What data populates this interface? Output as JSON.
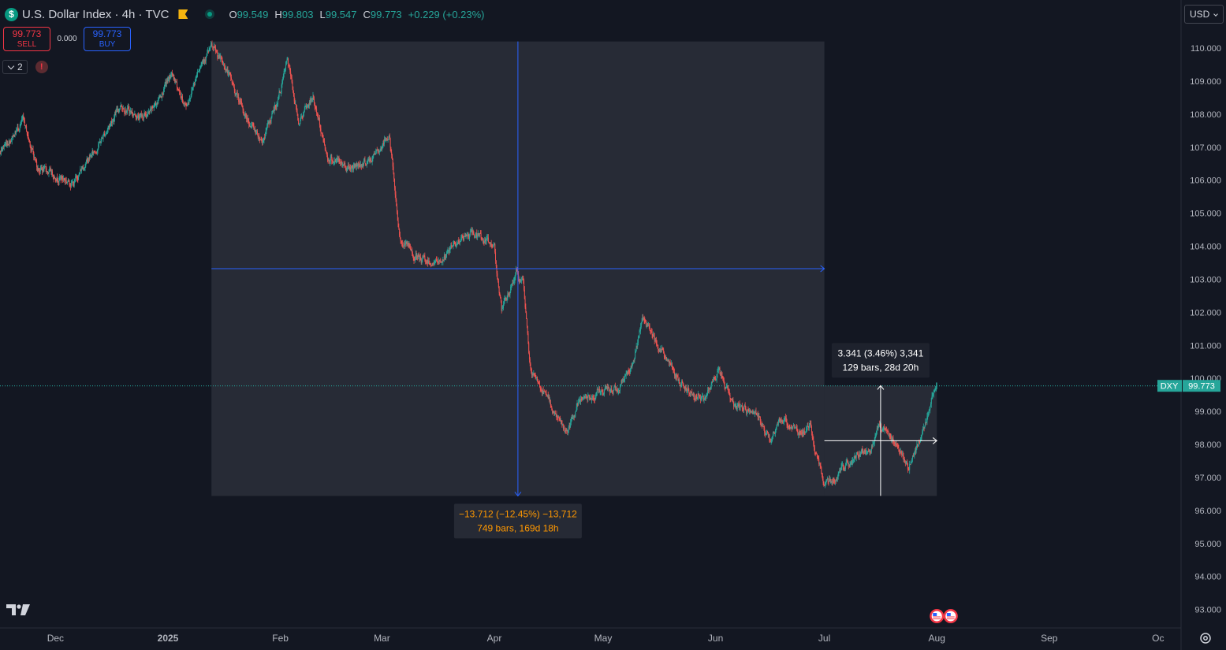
{
  "header": {
    "symbol_icon": "$",
    "title": "U.S. Dollar Index · 4h · TVC",
    "ohlc": {
      "o_label": "O",
      "o": "99.549",
      "h_label": "H",
      "h": "99.803",
      "l_label": "L",
      "l": "99.547",
      "c_label": "C",
      "c": "99.773",
      "change": "+0.229 (+0.23%)"
    }
  },
  "trade": {
    "sell_price": "99.773",
    "sell_label": "SELL",
    "spread": "0.000",
    "buy_price": "99.773",
    "buy_label": "BUY"
  },
  "indicators": {
    "count": "2",
    "alert_icon": "!"
  },
  "currency": "USD",
  "price_label": {
    "symbol": "DXY",
    "value": "99.773"
  },
  "colors": {
    "background": "#131722",
    "up": "#26a69a",
    "down": "#ef5350",
    "measure_blue": "#2962ff",
    "orange": "#ff9800",
    "price_tag": "#26a69a"
  },
  "chart_data": {
    "type": "candlestick",
    "title": "U.S. Dollar Index · 4h · TVC",
    "ylim": [
      92.6,
      111.2
    ],
    "y_ticks": [
      "110.000",
      "109.000",
      "108.000",
      "107.000",
      "106.000",
      "105.000",
      "104.000",
      "103.000",
      "102.000",
      "101.000",
      "100.000",
      "99.000",
      "98.000",
      "97.000",
      "96.000",
      "95.000",
      "94.000",
      "93.000"
    ],
    "y_tick_values": [
      110,
      109,
      108,
      107,
      106,
      105,
      104,
      103,
      102,
      101,
      100,
      99,
      98,
      97,
      96,
      95,
      94,
      93
    ],
    "x_ticks": [
      {
        "label": "Dec",
        "date": "2024-12-01"
      },
      {
        "label": "2025",
        "date": "2025-01-01"
      },
      {
        "label": "Feb",
        "date": "2025-02-01"
      },
      {
        "label": "Mar",
        "date": "2025-03-01"
      },
      {
        "label": "Apr",
        "date": "2025-04-01"
      },
      {
        "label": "May",
        "date": "2025-05-01"
      },
      {
        "label": "Jun",
        "date": "2025-06-01"
      },
      {
        "label": "Jul",
        "date": "2025-07-01"
      },
      {
        "label": "Aug",
        "date": "2025-08-01"
      },
      {
        "label": "Sep",
        "date": "2025-09-01"
      },
      {
        "label": "Oc",
        "date": "2025-10-01"
      }
    ],
    "price_path": [
      [
        "2024-11-08",
        105.6
      ],
      [
        "2024-11-14",
        106.6
      ],
      [
        "2024-11-22",
        107.8
      ],
      [
        "2024-11-26",
        106.4
      ],
      [
        "2024-12-06",
        105.9
      ],
      [
        "2024-12-09",
        106.5
      ],
      [
        "2024-12-12",
        106.9
      ],
      [
        "2024-12-19",
        108.3
      ],
      [
        "2024-12-24",
        107.9
      ],
      [
        "2024-12-27",
        108.0
      ],
      [
        "2025-01-02",
        109.2
      ],
      [
        "2025-01-06",
        108.2
      ],
      [
        "2025-01-10",
        109.6
      ],
      [
        "2025-01-13",
        110.0
      ],
      [
        "2025-01-17",
        109.4
      ],
      [
        "2025-01-22",
        108.0
      ],
      [
        "2025-01-27",
        107.2
      ],
      [
        "2025-01-31",
        108.3
      ],
      [
        "2025-02-03",
        109.6
      ],
      [
        "2025-02-06",
        107.8
      ],
      [
        "2025-02-10",
        108.5
      ],
      [
        "2025-02-14",
        106.7
      ],
      [
        "2025-02-20",
        106.4
      ],
      [
        "2025-02-26",
        106.6
      ],
      [
        "2025-03-03",
        107.4
      ],
      [
        "2025-03-06",
        104.2
      ],
      [
        "2025-03-11",
        103.6
      ],
      [
        "2025-03-17",
        103.5
      ],
      [
        "2025-03-21",
        104.1
      ],
      [
        "2025-03-26",
        104.4
      ],
      [
        "2025-04-01",
        104.0
      ],
      [
        "2025-04-03",
        102.0
      ],
      [
        "2025-04-07",
        103.2
      ],
      [
        "2025-04-09",
        102.8
      ],
      [
        "2025-04-11",
        100.2
      ],
      [
        "2025-04-14",
        99.7
      ],
      [
        "2025-04-21",
        98.3
      ],
      [
        "2025-04-25",
        99.4
      ],
      [
        "2025-04-30",
        99.6
      ],
      [
        "2025-05-05",
        99.7
      ],
      [
        "2025-05-09",
        100.4
      ],
      [
        "2025-05-12",
        101.8
      ],
      [
        "2025-05-16",
        101.1
      ],
      [
        "2025-05-22",
        99.9
      ],
      [
        "2025-05-29",
        99.3
      ],
      [
        "2025-06-02",
        100.3
      ],
      [
        "2025-06-06",
        99.2
      ],
      [
        "2025-06-12",
        98.9
      ],
      [
        "2025-06-16",
        98.1
      ],
      [
        "2025-06-19",
        98.8
      ],
      [
        "2025-06-24",
        98.4
      ],
      [
        "2025-06-27",
        98.5
      ],
      [
        "2025-06-30",
        97.2
      ],
      [
        "2025-07-01",
        96.8
      ],
      [
        "2025-07-04",
        97.0
      ],
      [
        "2025-07-09",
        97.6
      ],
      [
        "2025-07-14",
        98.0
      ],
      [
        "2025-07-16",
        98.6
      ],
      [
        "2025-07-18",
        98.4
      ],
      [
        "2025-07-22",
        97.8
      ],
      [
        "2025-07-24",
        97.3
      ],
      [
        "2025-07-28",
        98.3
      ],
      [
        "2025-07-30",
        99.1
      ],
      [
        "2025-07-31",
        99.7
      ],
      [
        "2025-08-01",
        99.773
      ]
    ],
    "last_price": 99.773,
    "measurements": [
      {
        "name": "drop-measure",
        "from": {
          "date": "2025-01-13",
          "price": 110.2
        },
        "to": {
          "date": "2025-07-01",
          "price": 96.44
        },
        "label_line1": "−13.712 (−12.45%) −13,712",
        "label_line2": "749 bars, 169d 18h"
      },
      {
        "name": "rise-measure",
        "from": {
          "date": "2025-07-01",
          "price": 96.44
        },
        "to": {
          "date": "2025-08-01",
          "price": 99.78
        },
        "label_line1": "3.341 (3.46%) 3,341",
        "label_line2": "129 bars, 28d 20h"
      }
    ],
    "event_markers": [
      {
        "date": "2025-08-01",
        "icon": "us-flag-icon"
      },
      {
        "date": "2025-08-02",
        "icon": "us-flag-icon"
      }
    ]
  }
}
